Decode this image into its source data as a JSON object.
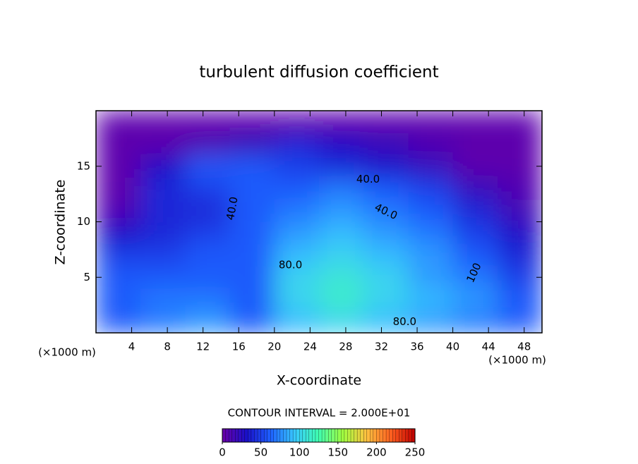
{
  "chart_data": {
    "type": "heatmap",
    "title": "turbulent diffusion coefficient",
    "x_label": "X-coordinate",
    "y_label": "Z-coordinate",
    "x_unit_left": "(×1000 m)",
    "x_unit_right": "(×1000 m)",
    "footer": "CONTOUR INTERVAL = 2.000E+01",
    "xlim": [
      0,
      50
    ],
    "ylim": [
      0,
      20
    ],
    "xticks": [
      4,
      8,
      12,
      16,
      20,
      24,
      28,
      32,
      36,
      40,
      44,
      48
    ],
    "yticks": [
      5,
      10,
      15
    ],
    "x": [
      2.5,
      7.5,
      12.5,
      17.5,
      22.5,
      27.5,
      32.5,
      37.5,
      42.5,
      47.5
    ],
    "y": [
      1,
      3,
      5,
      7,
      9,
      11,
      13,
      15,
      17,
      19
    ],
    "z": [
      [
        60,
        70,
        80,
        60,
        90,
        100,
        90,
        80,
        70,
        60
      ],
      [
        60,
        70,
        70,
        60,
        100,
        115,
        100,
        90,
        80,
        60
      ],
      [
        60,
        60,
        60,
        60,
        100,
        110,
        100,
        80,
        70,
        50
      ],
      [
        50,
        50,
        60,
        60,
        90,
        100,
        90,
        80,
        60,
        40
      ],
      [
        30,
        40,
        50,
        60,
        80,
        90,
        80,
        70,
        50,
        30
      ],
      [
        10,
        40,
        40,
        60,
        70,
        80,
        70,
        60,
        40,
        15
      ],
      [
        5,
        40,
        50,
        60,
        60,
        70,
        60,
        50,
        20,
        10
      ],
      [
        5,
        30,
        60,
        60,
        50,
        40,
        30,
        20,
        5,
        5
      ],
      [
        5,
        5,
        10,
        20,
        40,
        30,
        20,
        10,
        5,
        5
      ],
      [
        5,
        5,
        5,
        5,
        5,
        5,
        5,
        5,
        5,
        5
      ]
    ],
    "clim": [
      0,
      250
    ],
    "cticks": [
      0,
      50,
      100,
      150,
      200,
      250
    ],
    "colormap": [
      "#6a00a8",
      "#1a10c8",
      "#1e60ff",
      "#38c8ff",
      "#40ffb0",
      "#a0ff40",
      "#ffc040",
      "#ff6020",
      "#c00000"
    ],
    "annotations": [
      {
        "text": "40.0",
        "x": 30.5,
        "y": 13.8,
        "angle": 0
      },
      {
        "text": "40.0",
        "x": 32.5,
        "y": 10.9,
        "angle": 25
      },
      {
        "text": "40.0",
        "x": 15.3,
        "y": 11.2,
        "angle": -80
      },
      {
        "text": "80.0",
        "x": 21.8,
        "y": 6.1,
        "angle": 0
      },
      {
        "text": "80.0",
        "x": 34.6,
        "y": 1.0,
        "angle": 0
      },
      {
        "text": "100",
        "x": 42.4,
        "y": 5.4,
        "angle": -65
      }
    ]
  }
}
